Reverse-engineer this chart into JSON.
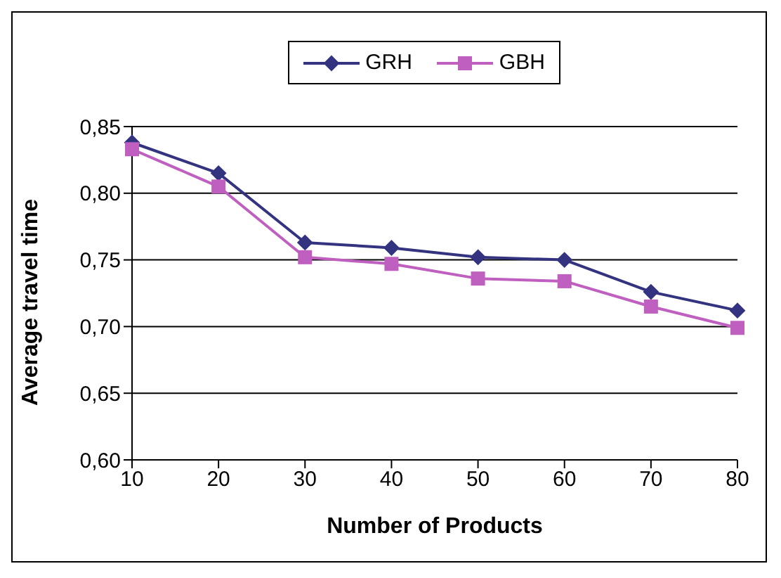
{
  "chart_data": {
    "type": "line",
    "xlabel": "Number of Products",
    "ylabel": "Average travel time",
    "categories": [
      "10",
      "20",
      "30",
      "40",
      "50",
      "60",
      "70",
      "80"
    ],
    "series": [
      {
        "name": "GRH",
        "color": "#333380",
        "marker": "diamond",
        "values": [
          0.838,
          0.815,
          0.763,
          0.759,
          0.752,
          0.75,
          0.726,
          0.712
        ]
      },
      {
        "name": "GBH",
        "color": "#bf5fbf",
        "marker": "square",
        "values": [
          0.833,
          0.805,
          0.752,
          0.747,
          0.736,
          0.734,
          0.715,
          0.699
        ]
      }
    ],
    "ylim": [
      0.6,
      0.85
    ],
    "yticks": [
      {
        "value": 0.6,
        "label": "0,60"
      },
      {
        "value": 0.65,
        "label": "0,65"
      },
      {
        "value": 0.7,
        "label": "0,70"
      },
      {
        "value": 0.75,
        "label": "0,75"
      },
      {
        "value": 0.8,
        "label": "0,80"
      },
      {
        "value": 0.85,
        "label": "0,85"
      }
    ],
    "grid": "y",
    "legend": "top",
    "line_style": "solid"
  }
}
